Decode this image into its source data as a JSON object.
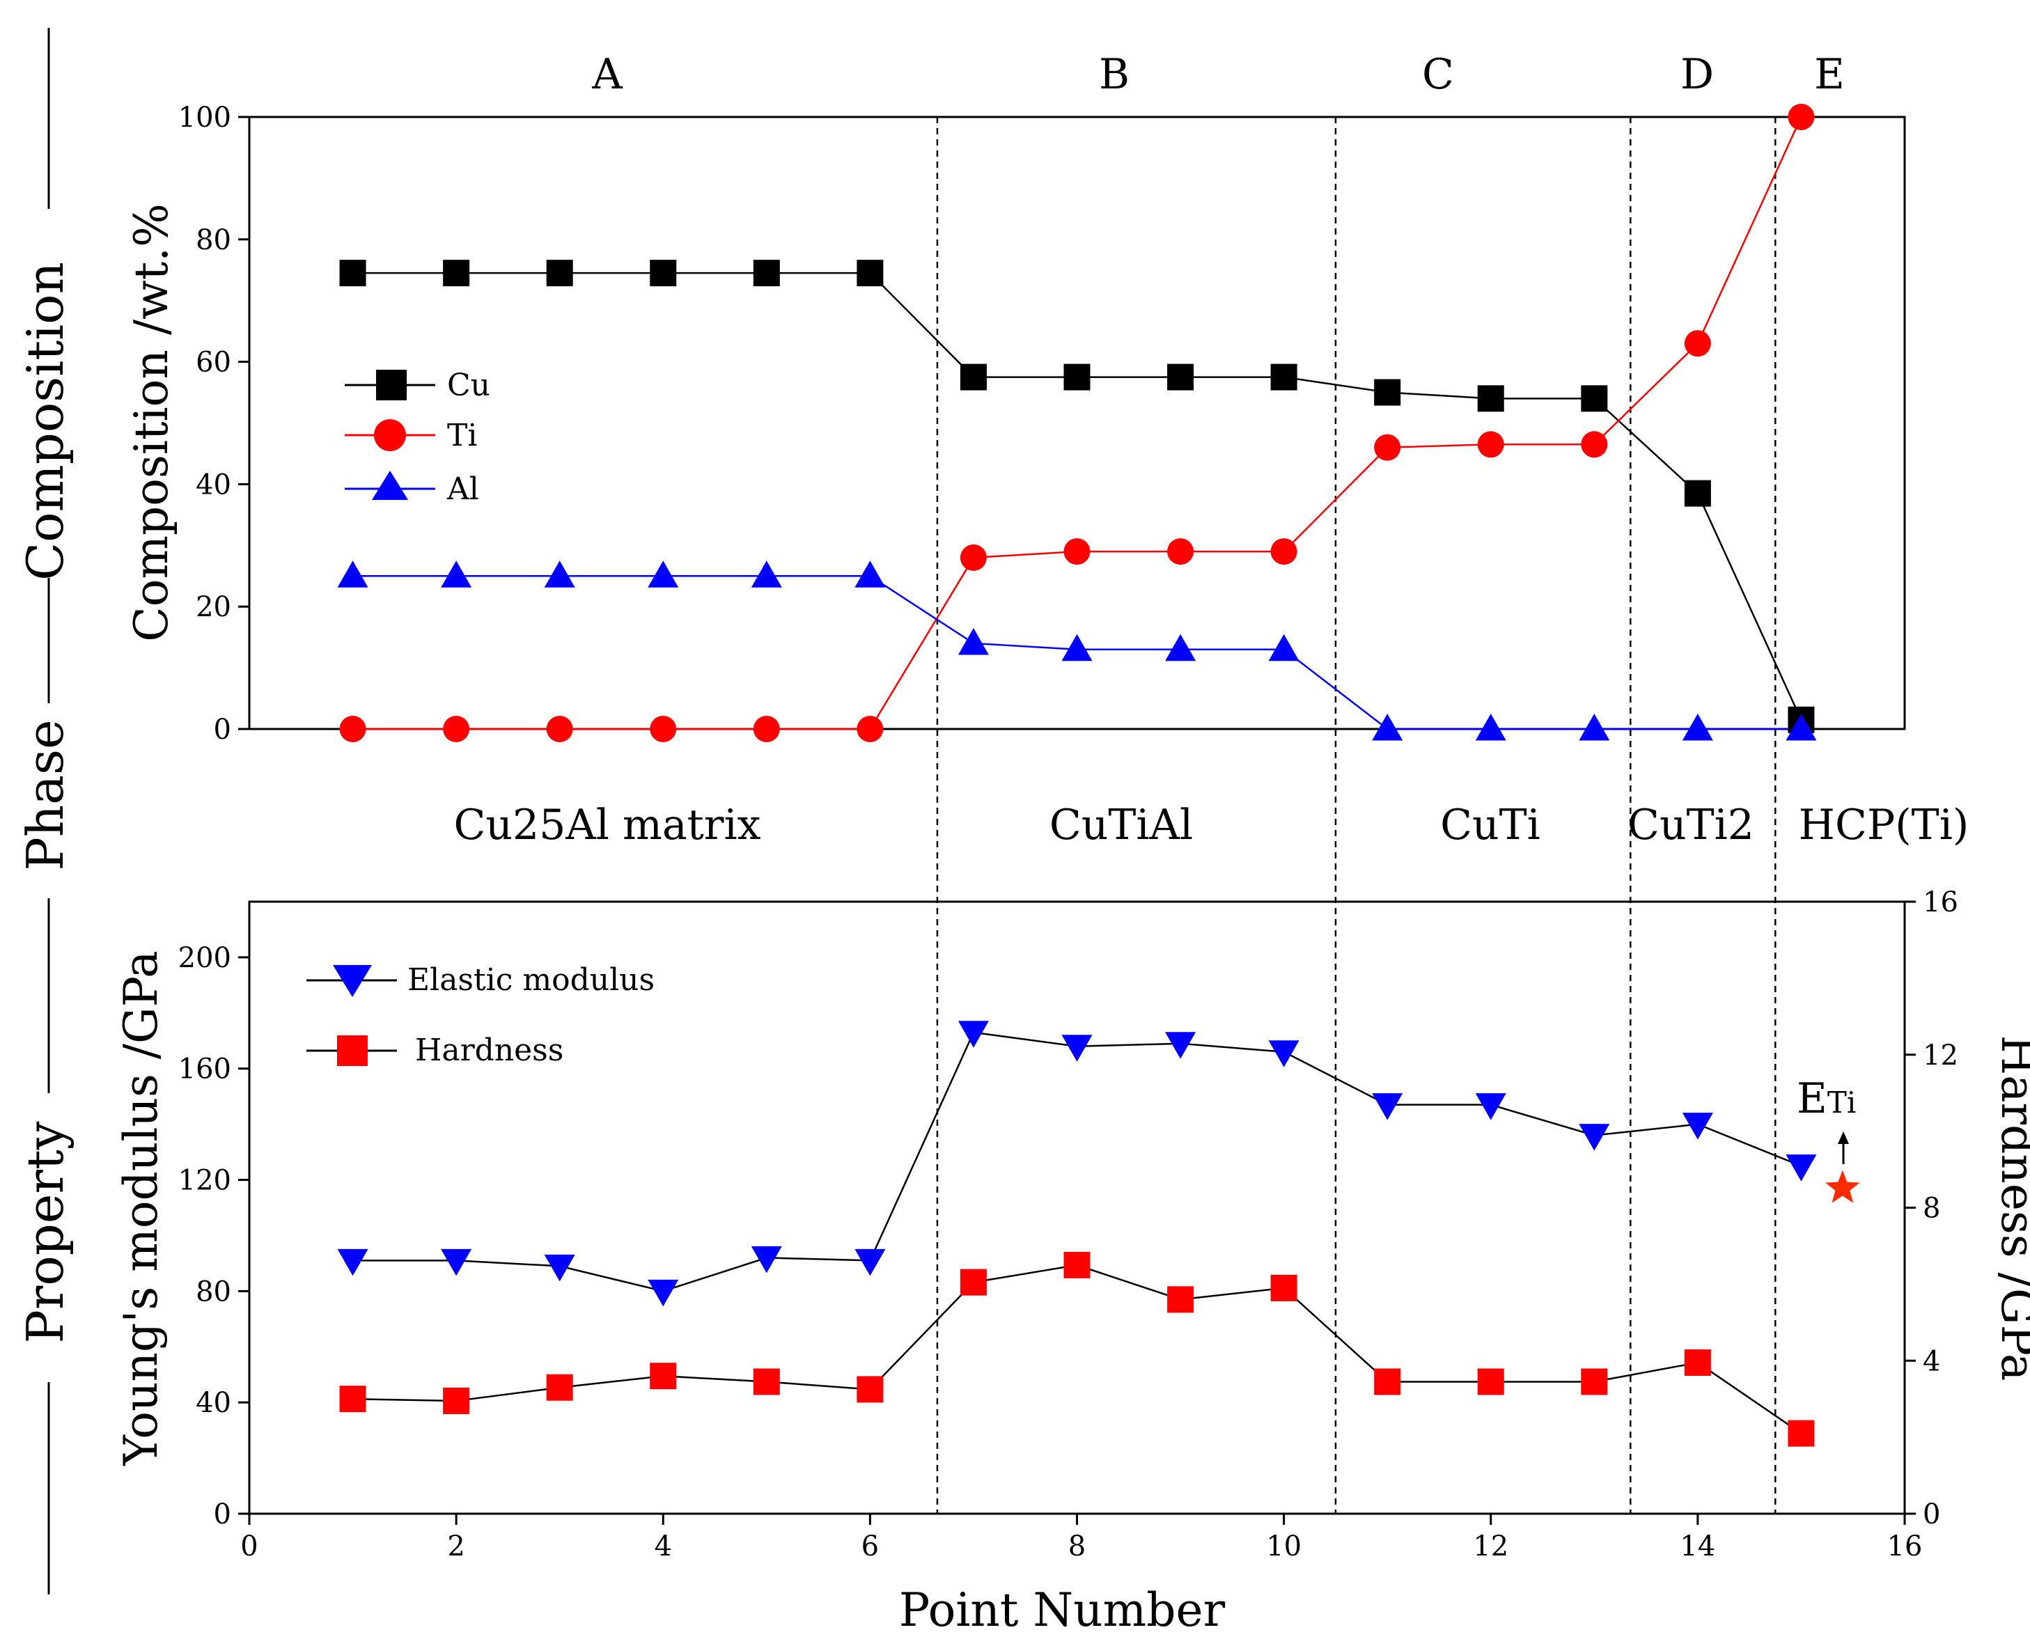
{
  "chart_data": [
    {
      "type": "line",
      "panel": "top",
      "zones": [
        "A",
        "B",
        "C",
        "D",
        "E"
      ],
      "phase_labels": [
        "Cu25Al matrix",
        "CuTiAl",
        "CuTi",
        "CuTi2",
        "HCP(Ti)"
      ],
      "zone_boundaries": [
        6.65,
        10.5,
        13.35,
        14.75
      ],
      "ylabel": "Composition /wt.%",
      "ylim": [
        0,
        100
      ],
      "yticks": [
        0,
        20,
        40,
        60,
        80,
        100
      ],
      "xlim": [
        0,
        16
      ],
      "legend_position": "left",
      "series": [
        {
          "name": "Cu",
          "color": "#000000",
          "marker": "square",
          "x": [
            1,
            2,
            3,
            4,
            5,
            6,
            7,
            8,
            9,
            10,
            11,
            12,
            13,
            14,
            15
          ],
          "values": [
            74.5,
            74.5,
            74.5,
            74.5,
            74.5,
            74.5,
            57.5,
            57.5,
            57.5,
            57.5,
            55,
            54,
            54,
            38.5,
            1.5
          ]
        },
        {
          "name": "Ti",
          "color": "#ff0000",
          "marker": "circle",
          "x": [
            1,
            2,
            3,
            4,
            5,
            6,
            7,
            8,
            9,
            10,
            11,
            12,
            13,
            14,
            15
          ],
          "values": [
            0,
            0,
            0,
            0,
            0,
            0,
            28,
            29,
            29,
            29,
            46,
            46.5,
            46.5,
            63,
            100
          ]
        },
        {
          "name": "Al",
          "color": "#0000ff",
          "marker": "triangle-up",
          "x": [
            1,
            2,
            3,
            4,
            5,
            6,
            7,
            8,
            9,
            10,
            11,
            12,
            13,
            14,
            15
          ],
          "values": [
            25,
            25,
            25,
            25,
            25,
            25,
            14,
            13,
            13,
            13,
            0,
            0,
            0,
            0,
            0
          ]
        }
      ]
    },
    {
      "type": "line",
      "panel": "bottom",
      "xlabel": "Point Number",
      "xlim": [
        0,
        16
      ],
      "xticks": [
        0,
        2,
        4,
        6,
        8,
        10,
        12,
        14,
        16
      ],
      "ylabel": "Young's modulus /GPa",
      "ylim": [
        0,
        220
      ],
      "yticks": [
        0,
        40,
        80,
        120,
        160,
        200
      ],
      "y2label": "Hardness /GPa",
      "y2lim": [
        0,
        16
      ],
      "y2ticks": [
        0,
        4,
        8,
        12,
        16
      ],
      "legend_position": "top-left",
      "series": [
        {
          "name": "Elastic modulus",
          "color": "#0000ff",
          "marker": "triangle-down",
          "axis": "left",
          "x": [
            1,
            2,
            3,
            4,
            5,
            6,
            7,
            8,
            9,
            10,
            11,
            12,
            13,
            14,
            15
          ],
          "values": [
            91,
            91,
            89,
            80,
            92,
            91,
            173,
            168,
            169,
            166,
            147,
            147,
            136,
            140,
            125
          ]
        },
        {
          "name": "Hardness",
          "color": "#ff0000",
          "marker": "square",
          "axis": "right",
          "x": [
            1,
            2,
            3,
            4,
            5,
            6,
            7,
            8,
            9,
            10,
            11,
            12,
            13,
            14,
            15
          ],
          "values": [
            3.0,
            2.95,
            3.3,
            3.6,
            3.45,
            3.25,
            6.05,
            6.5,
            5.6,
            5.9,
            3.45,
            3.45,
            3.45,
            3.95,
            2.1
          ]
        }
      ],
      "annotation": {
        "label": "E",
        "subscript": "Ti",
        "marker": "star",
        "color": "#ff2a00",
        "x": 15.4,
        "value": 117
      }
    }
  ],
  "side_labels": {
    "composition": "Composition",
    "phase": "Phase",
    "property": "Property"
  }
}
